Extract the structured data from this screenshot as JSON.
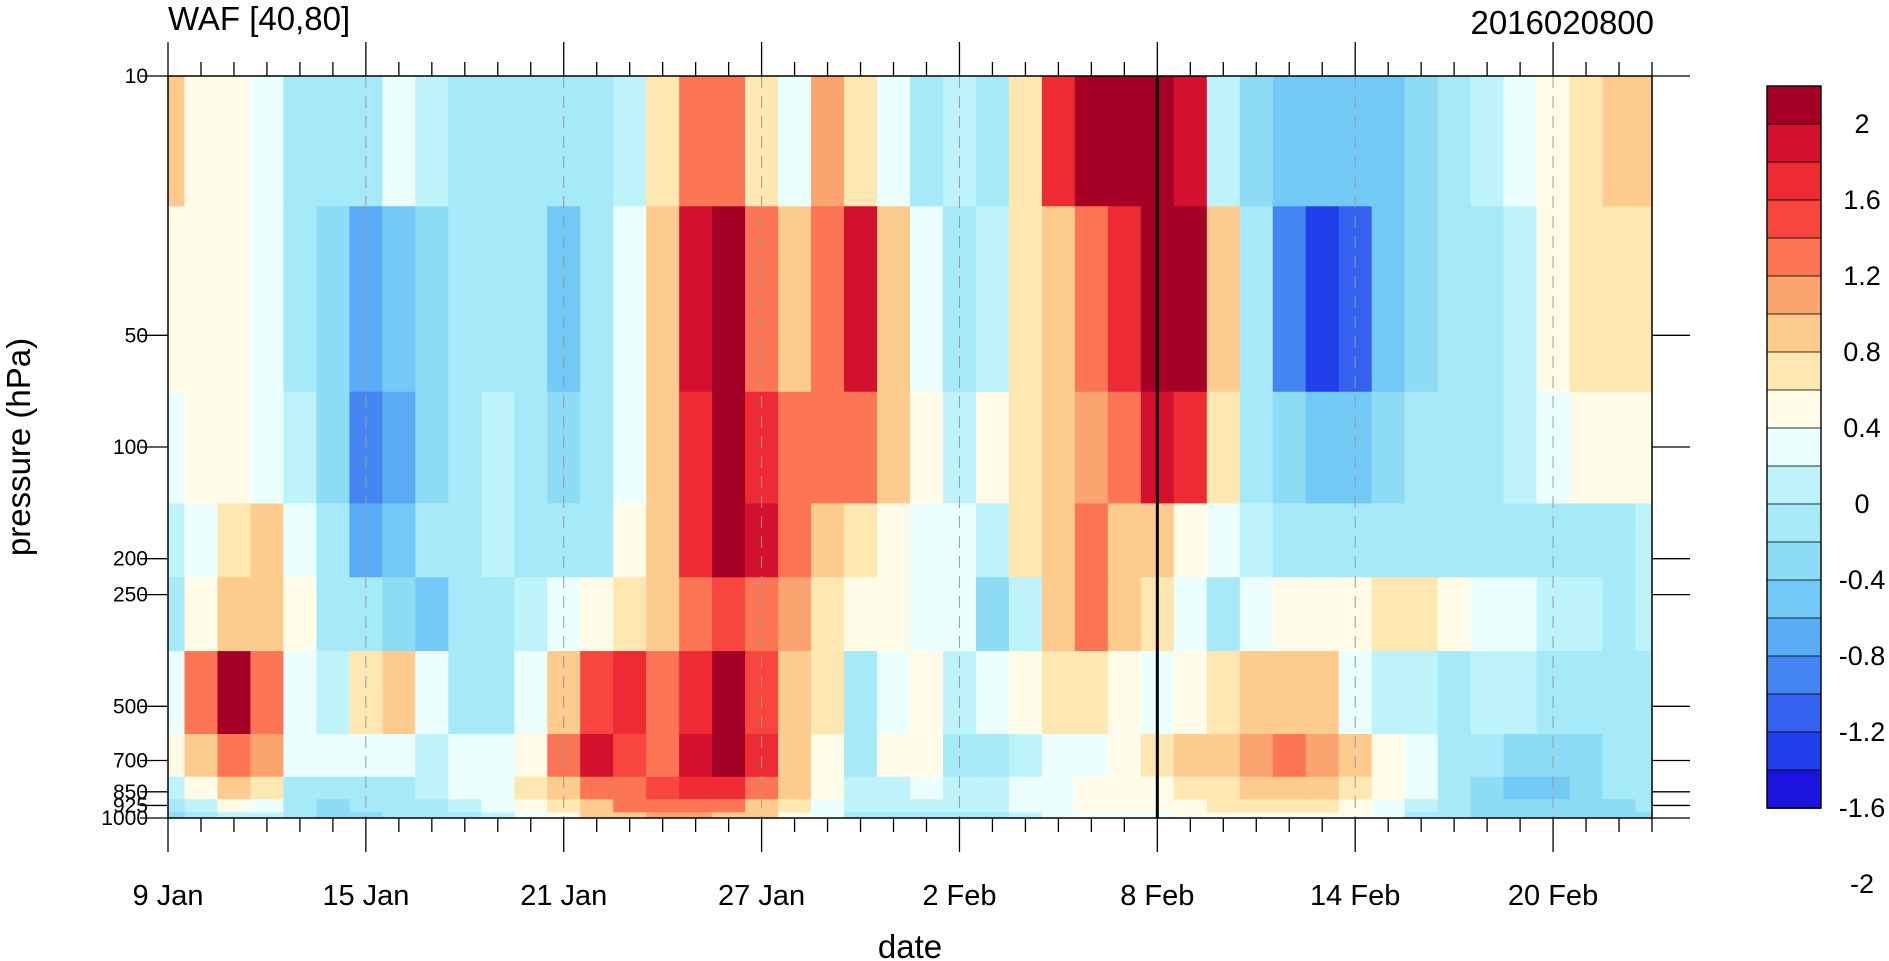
{
  "chart_data": {
    "type": "heatmap",
    "title": "WAF [40,80]",
    "subtitle": "2016020800",
    "xlabel": "date",
    "ylabel": "pressure (hPa)",
    "x_tick_labels": [
      "9 Jan",
      "15 Jan",
      "21 Jan",
      "27 Jan",
      "2 Feb",
      "8 Feb",
      "14 Feb",
      "20 Feb"
    ],
    "x_tick_days": [
      0,
      6,
      12,
      18,
      24,
      30,
      36,
      42
    ],
    "x_range_days": [
      0,
      45
    ],
    "marker_line_day": 30,
    "y_scale": "log",
    "y_levels": [
      1000,
      925,
      850,
      700,
      500,
      250,
      200,
      100,
      50,
      10
    ],
    "y_tick_labels": [
      "1000",
      "925",
      "850",
      "700",
      "500",
      "250",
      "200",
      "100",
      "50",
      "10"
    ],
    "y_range_hpa": [
      1000,
      10
    ],
    "colorbar": {
      "tick_labels": [
        "2",
        "1.6",
        "1.2",
        "0.8",
        "0.4",
        "0",
        "-0.4",
        "-0.8",
        "-1.2",
        "-1.6",
        "-2"
      ],
      "tick_values": [
        2,
        1.6,
        1.2,
        0.8,
        0.4,
        0,
        -0.4,
        -0.8,
        -1.2,
        -1.6,
        -2
      ],
      "interval": 0.2,
      "colors_top_to_bottom": [
        "#a50026",
        "#d3102e",
        "#ee2a35",
        "#f8463f",
        "#fc7655",
        "#fca470",
        "#fdcb8e",
        "#fee7b0",
        "#fffbe6",
        "#ebffff",
        "#bff3fb",
        "#a6e9f8",
        "#8ddbf5",
        "#73c9f6",
        "#5aabf5",
        "#4485f1",
        "#3461f0",
        "#2140ec",
        "#1a14dc"
      ]
    },
    "dates": [
      "9 Jan",
      "10 Jan",
      "11 Jan",
      "12 Jan",
      "13 Jan",
      "14 Jan",
      "15 Jan",
      "16 Jan",
      "17 Jan",
      "18 Jan",
      "19 Jan",
      "20 Jan",
      "21 Jan",
      "22 Jan",
      "23 Jan",
      "24 Jan",
      "25 Jan",
      "26 Jan",
      "27 Jan",
      "28 Jan",
      "29 Jan",
      "30 Jan",
      "31 Jan",
      "1 Feb",
      "2 Feb",
      "3 Feb",
      "4 Feb",
      "5 Feb",
      "6 Feb",
      "7 Feb",
      "8 Feb",
      "9 Feb",
      "10 Feb",
      "11 Feb",
      "12 Feb",
      "13 Feb",
      "14 Feb",
      "15 Feb",
      "16 Feb",
      "17 Feb",
      "18 Feb",
      "19 Feb",
      "20 Feb",
      "21 Feb",
      "22 Feb",
      "23 Feb"
    ],
    "values_by_level": {
      "10": [
        0.5,
        0.1,
        0.0,
        -0.2,
        -0.4,
        -0.5,
        -0.4,
        -0.1,
        -0.3,
        -0.4,
        -0.5,
        -0.4,
        -0.4,
        -0.5,
        -0.3,
        0.3,
        0.9,
        1.0,
        0.3,
        -0.1,
        0.7,
        0.3,
        -0.2,
        -0.5,
        -0.3,
        -0.6,
        0.2,
        1.3,
        2.5,
        2.8,
        2.8,
        1.4,
        -0.3,
        -0.7,
        -0.9,
        -1.0,
        -1.0,
        -0.9,
        -0.7,
        -0.5,
        -0.3,
        -0.1,
        0.1,
        0.2,
        0.5,
        0.4
      ],
      "50": [
        0.1,
        0.0,
        0.0,
        -0.1,
        -0.4,
        -0.7,
        -1.1,
        -1.0,
        -0.8,
        -0.5,
        -0.4,
        -0.5,
        -0.9,
        -0.5,
        -0.2,
        0.5,
        1.4,
        1.7,
        1.0,
        0.6,
        1.0,
        1.5,
        0.6,
        -0.2,
        -0.4,
        -0.3,
        0.2,
        0.5,
        0.9,
        1.3,
        2.0,
        1.8,
        0.6,
        -0.5,
        -1.3,
        -1.7,
        -1.5,
        -1.0,
        -0.7,
        -0.6,
        -0.5,
        -0.3,
        0.1,
        0.2,
        0.3,
        0.2
      ],
      "100": [
        -0.1,
        0.0,
        0.1,
        -0.1,
        -0.3,
        -0.8,
        -1.3,
        -1.1,
        -0.7,
        -0.4,
        -0.3,
        -0.5,
        -0.7,
        -0.4,
        -0.1,
        0.5,
        1.3,
        1.7,
        1.2,
        0.8,
        1.0,
        1.0,
        0.5,
        0.0,
        -0.3,
        0.0,
        0.3,
        0.6,
        0.7,
        1.0,
        1.4,
        1.2,
        0.2,
        -0.4,
        -0.8,
        -1.0,
        -1.0,
        -0.8,
        -0.6,
        -0.5,
        -0.4,
        -0.3,
        -0.1,
        0.0,
        0.1,
        0.0
      ],
      "200": [
        -0.3,
        -0.1,
        0.3,
        0.4,
        -0.1,
        -0.6,
        -1.2,
        -0.9,
        -0.6,
        -0.4,
        -0.3,
        -0.4,
        -0.5,
        -0.4,
        0.0,
        0.6,
        1.3,
        1.6,
        1.4,
        1.0,
        0.4,
        0.2,
        0.1,
        -0.1,
        -0.2,
        -0.3,
        0.2,
        0.6,
        0.8,
        0.6,
        0.4,
        0.0,
        -0.2,
        -0.3,
        -0.4,
        -0.4,
        -0.4,
        -0.5,
        -0.5,
        -0.5,
        -0.5,
        -0.6,
        -0.6,
        -0.6,
        -0.4,
        -0.3
      ],
      "250": [
        -0.4,
        0.0,
        0.5,
        0.6,
        0.1,
        -0.4,
        -0.6,
        -0.7,
        -0.9,
        -0.5,
        -0.4,
        -0.3,
        -0.2,
        0.1,
        0.2,
        0.6,
        1.0,
        1.1,
        1.0,
        0.7,
        0.3,
        0.1,
        0.0,
        -0.1,
        -0.2,
        -0.7,
        -0.3,
        0.4,
        0.8,
        0.6,
        0.2,
        -0.1,
        -0.5,
        -0.2,
        0.0,
        0.1,
        0.0,
        0.2,
        0.2,
        0.0,
        -0.2,
        -0.2,
        -0.3,
        -0.3,
        -0.4,
        -0.3
      ],
      "500": [
        -0.1,
        0.9,
        1.6,
        0.8,
        -0.1,
        -0.3,
        0.2,
        0.5,
        -0.2,
        -0.5,
        -0.5,
        -0.2,
        0.5,
        1.1,
        1.2,
        1.0,
        1.3,
        1.8,
        1.1,
        0.5,
        0.2,
        -0.4,
        -0.1,
        0.1,
        -0.3,
        -0.1,
        0.1,
        0.2,
        0.3,
        0.1,
        -0.1,
        0.0,
        0.2,
        0.6,
        0.6,
        0.4,
        -0.1,
        -0.3,
        -0.3,
        -0.4,
        -0.3,
        -0.3,
        -0.4,
        -0.4,
        -0.5,
        -0.4
      ],
      "700": [
        0.0,
        0.6,
        0.9,
        0.7,
        -0.1,
        -0.2,
        -0.1,
        -0.2,
        -0.3,
        -0.2,
        -0.2,
        0.1,
        0.9,
        1.4,
        1.1,
        1.0,
        1.5,
        2.0,
        1.3,
        0.6,
        0.1,
        -0.5,
        0.0,
        0.0,
        -0.5,
        -0.6,
        -0.3,
        -0.2,
        -0.1,
        0.0,
        0.2,
        0.4,
        0.6,
        0.7,
        0.8,
        0.7,
        0.4,
        0.1,
        -0.2,
        -0.4,
        -0.6,
        -0.8,
        -0.8,
        -0.7,
        -0.5,
        -0.4
      ],
      "850": [
        -0.3,
        0.1,
        0.4,
        0.3,
        -0.4,
        -0.6,
        -0.5,
        -0.4,
        -0.3,
        -0.2,
        -0.1,
        0.2,
        0.6,
        0.9,
        1.0,
        1.1,
        1.2,
        1.3,
        0.9,
        0.4,
        0.0,
        -0.3,
        -0.3,
        -0.2,
        -0.3,
        -0.3,
        -0.2,
        -0.1,
        0.0,
        0.0,
        0.1,
        0.2,
        0.3,
        0.4,
        0.5,
        0.5,
        0.3,
        0.0,
        -0.2,
        -0.5,
        -0.7,
        -0.9,
        -0.9,
        -0.7,
        -0.6,
        -0.5
      ],
      "925": [
        -0.5,
        -0.3,
        0.0,
        -0.1,
        -0.5,
        -0.7,
        -0.6,
        -0.5,
        -0.4,
        -0.3,
        -0.2,
        0.0,
        0.3,
        0.6,
        0.8,
        0.9,
        0.9,
        0.9,
        0.6,
        0.2,
        -0.1,
        -0.3,
        -0.3,
        -0.3,
        -0.3,
        -0.3,
        -0.2,
        -0.1,
        0.0,
        0.0,
        0.0,
        0.1,
        0.2,
        0.3,
        0.3,
        0.3,
        0.1,
        -0.1,
        -0.3,
        -0.5,
        -0.7,
        -0.8,
        -0.8,
        -0.7,
        -0.7,
        -0.6
      ],
      "1000": [
        -0.7,
        -0.5,
        -0.3,
        -0.3,
        -0.6,
        -0.8,
        -0.7,
        -0.6,
        -0.5,
        -0.4,
        -0.3,
        -0.1,
        0.1,
        0.4,
        0.6,
        0.7,
        0.7,
        0.6,
        0.4,
        0.1,
        -0.2,
        -0.4,
        -0.4,
        -0.4,
        -0.4,
        -0.4,
        -0.3,
        -0.2,
        -0.1,
        -0.1,
        -0.1,
        0.0,
        0.1,
        0.1,
        0.1,
        0.1,
        0.0,
        -0.2,
        -0.4,
        -0.6,
        -0.7,
        -0.8,
        -0.8,
        -0.8,
        -0.8,
        -0.7
      ]
    }
  }
}
